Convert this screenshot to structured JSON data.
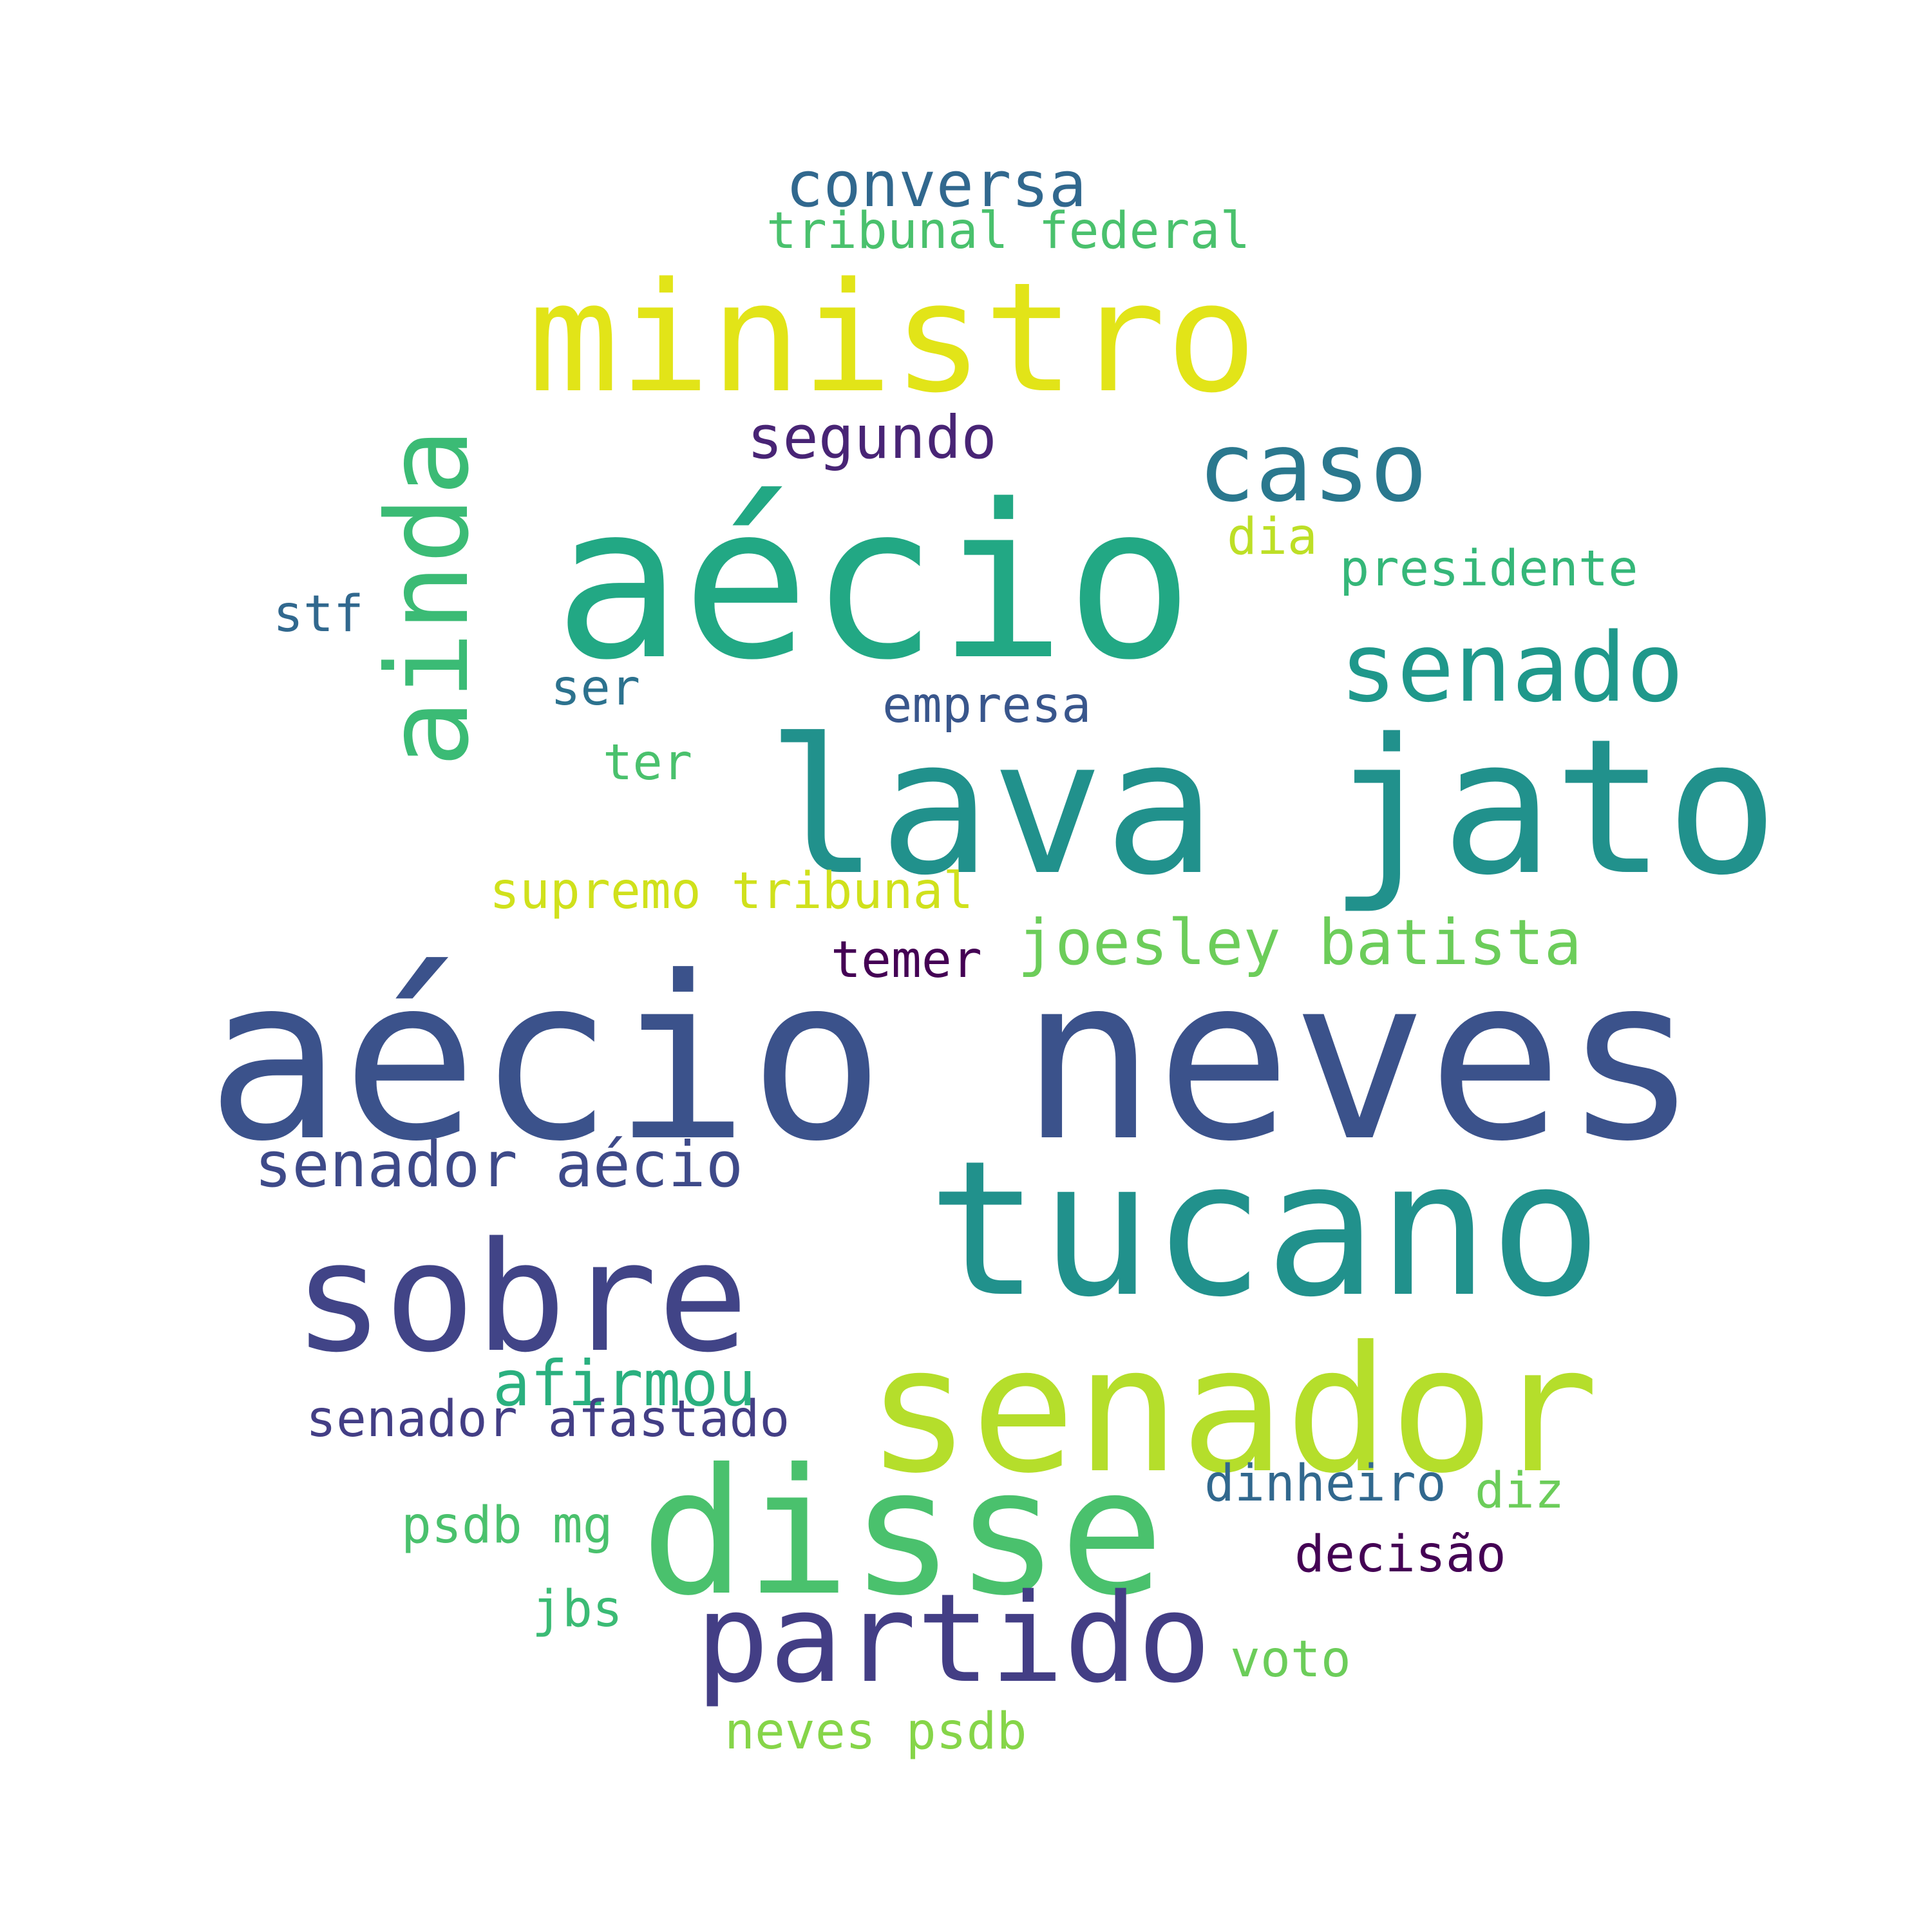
{
  "words": [
    {
      "text": "conversa",
      "color": "#31688e"
    },
    {
      "text": "tribunal federal",
      "color": "#4ac16d"
    },
    {
      "text": "ministro",
      "color": "#e2e418"
    },
    {
      "text": "segundo",
      "color": "#482475"
    },
    {
      "text": "caso",
      "color": "#2a788e"
    },
    {
      "text": "ainda",
      "color": "#3bbb75"
    },
    {
      "text": "aécio",
      "color": "#22a884"
    },
    {
      "text": "dia",
      "color": "#bddf26"
    },
    {
      "text": "presidente",
      "color": "#35b779"
    },
    {
      "text": "stf",
      "color": "#31688e"
    },
    {
      "text": "senado",
      "color": "#1f988b"
    },
    {
      "text": "ser",
      "color": "#2c728e"
    },
    {
      "text": "empresa",
      "color": "#39568c"
    },
    {
      "text": "ter",
      "color": "#4ac16d"
    },
    {
      "text": "lava jato",
      "color": "#21918c"
    },
    {
      "text": "supremo tribunal",
      "color": "#d0e11c"
    },
    {
      "text": "joesley batista",
      "color": "#6ccd5a"
    },
    {
      "text": "temer",
      "color": "#440154"
    },
    {
      "text": "aécio neves",
      "color": "#3b528b"
    },
    {
      "text": "senador aécio",
      "color": "#3e4a89"
    },
    {
      "text": "tucano",
      "color": "#21918c"
    },
    {
      "text": "sobre",
      "color": "#414487"
    },
    {
      "text": "senador",
      "color": "#b5de2b"
    },
    {
      "text": "afirmou",
      "color": "#2ab07f"
    },
    {
      "text": "senador afastado",
      "color": "#433e85"
    },
    {
      "text": "dinheiro",
      "color": "#31688e"
    },
    {
      "text": "diz",
      "color": "#6ccd5a"
    },
    {
      "text": "psdb mg",
      "color": "#4ac16d"
    },
    {
      "text": "disse",
      "color": "#4ac16d"
    },
    {
      "text": "decisão",
      "color": "#440154"
    },
    {
      "text": "jbs",
      "color": "#3bbb75"
    },
    {
      "text": "partido",
      "color": "#433e85"
    },
    {
      "text": "voto",
      "color": "#6ccd5a"
    },
    {
      "text": "neves psdb",
      "color": "#86d549"
    }
  ]
}
